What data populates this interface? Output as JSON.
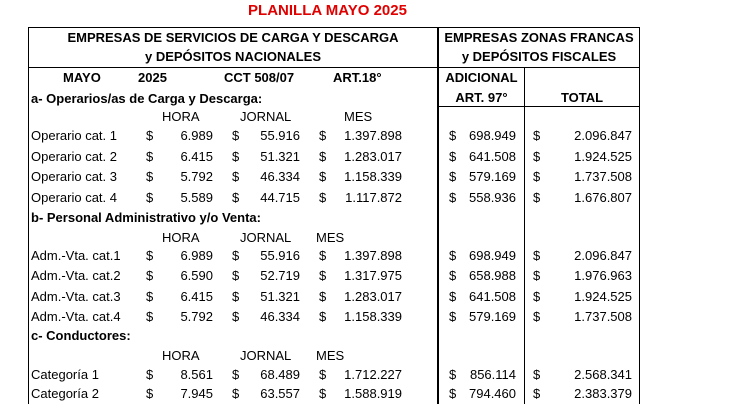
{
  "title": "PLANILLA MAYO 2025",
  "header_left": [
    "EMPRESAS DE SERVICIOS DE CARGA Y DESCARGA",
    "y   DEPÓSITOS NACIONALES"
  ],
  "header_right": [
    "EMPRESAS ZONAS FRANCAS",
    "y DEPÓSITOS FISCALES"
  ],
  "subheader": {
    "month": "MAYO",
    "year": "2025",
    "cct": "CCT 508/07",
    "art": "ART.18°",
    "adicional": "ADICIONAL",
    "adicional_art": "ART. 97°",
    "total": "TOTAL"
  },
  "currency": "$",
  "sections": [
    {
      "title": "a- Operarios/as de Carga y Descarga:",
      "cols": [
        "HORA",
        "JORNAL",
        "MES"
      ],
      "rows": [
        {
          "label": "Operario cat. 1",
          "hora": "6.989",
          "jornal": "55.916",
          "mes": "1.397.898",
          "adicional": "698.949",
          "total": "2.096.847"
        },
        {
          "label": "Operario cat. 2",
          "hora": "6.415",
          "jornal": "51.321",
          "mes": "1.283.017",
          "adicional": "641.508",
          "total": "1.924.525"
        },
        {
          "label": "Operario cat. 3",
          "hora": "5.792",
          "jornal": "46.334",
          "mes": "1.158.339",
          "adicional": "579.169",
          "total": "1.737.508"
        },
        {
          "label": "Operario cat. 4",
          "hora": "5.589",
          "jornal": "44.715",
          "mes": "1.117.872",
          "adicional": "558.936",
          "total": "1.676.807"
        }
      ]
    },
    {
      "title": "b- Personal Administrativo y/o Venta:",
      "cols": [
        "HORA",
        "JORNAL",
        "MES"
      ],
      "rows": [
        {
          "label": "Adm.-Vta. cat.1",
          "hora": "6.989",
          "jornal": "55.916",
          "mes": "1.397.898",
          "adicional": "698.949",
          "total": "2.096.847"
        },
        {
          "label": "Adm.-Vta. cat.2",
          "hora": "6.590",
          "jornal": "52.719",
          "mes": "1.317.975",
          "adicional": "658.988",
          "total": "1.976.963"
        },
        {
          "label": "Adm.-Vta. cat.3",
          "hora": "6.415",
          "jornal": "51.321",
          "mes": "1.283.017",
          "adicional": "641.508",
          "total": "1.924.525"
        },
        {
          "label": "Adm.-Vta. cat.4",
          "hora": "5.792",
          "jornal": "46.334",
          "mes": "1.158.339",
          "adicional": "579.169",
          "total": "1.737.508"
        }
      ]
    },
    {
      "title": "c- Conductores:",
      "cols": [
        "HORA",
        "JORNAL",
        "MES"
      ],
      "rows": [
        {
          "label": "Categoría 1",
          "hora": "8.561",
          "jornal": "68.489",
          "mes": "1.712.227",
          "adicional": "856.114",
          "total": "2.568.341"
        },
        {
          "label": "Categoría 2",
          "hora": "7.945",
          "jornal": "63.557",
          "mes": "1.588.919",
          "adicional": "794.460",
          "total": "2.383.379"
        }
      ]
    }
  ]
}
